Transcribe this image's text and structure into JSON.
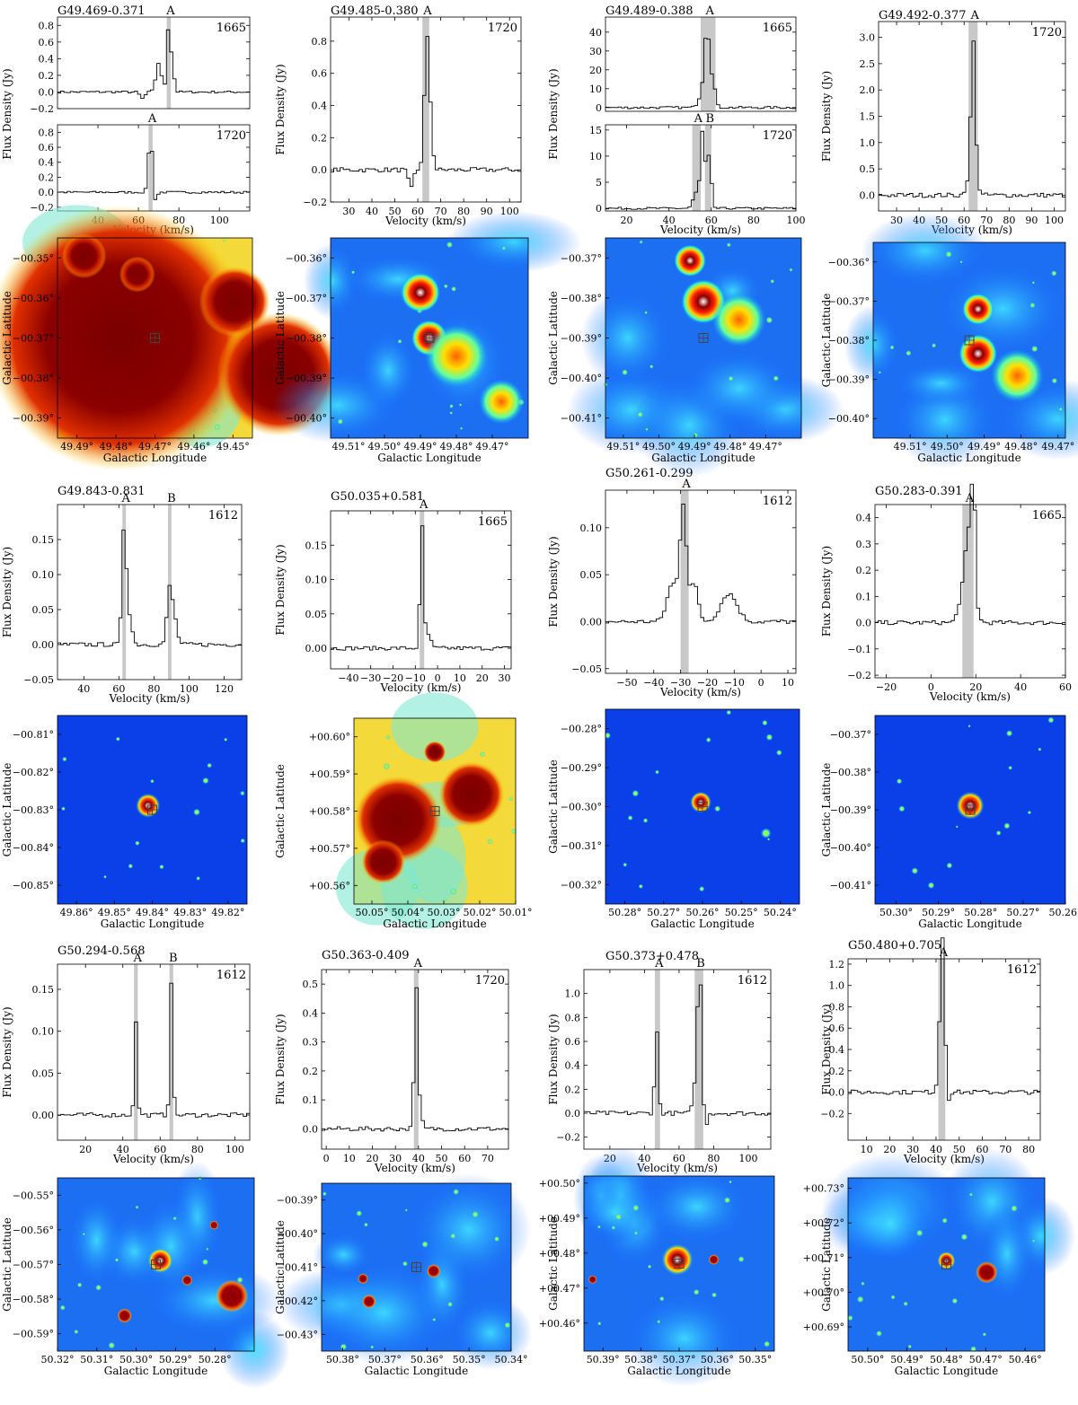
{
  "axis_text": {
    "velocity": "Velocity (km/s)",
    "flux": "Flux Density (Jy)",
    "glat": "Galactic Latitude",
    "glon": "Galactic Longitude"
  },
  "chart_data": [
    {
      "type": "line",
      "title": "G49.469-0.371",
      "panels": [
        {
          "line": "1665",
          "xlim": [
            20,
            115
          ],
          "ylim": [
            -0.2,
            0.9
          ],
          "xticks": [],
          "yticks": [
            -0.2,
            0.0,
            0.2,
            0.4,
            0.6,
            0.8
          ],
          "components": [
            {
              "label": "A",
              "v": [
                74,
                76
              ]
            }
          ],
          "features": [
            {
              "v": 62,
              "peak": -0.08,
              "w": 1.2
            },
            {
              "v": 70,
              "peak": 0.35,
              "w": 1.3
            },
            {
              "v": 75,
              "peak": 0.82,
              "w": 0.9
            },
            {
              "v": 77,
              "peak": 0.25,
              "w": 0.8
            }
          ]
        },
        {
          "line": "1720",
          "xlim": [
            20,
            115
          ],
          "ylim": [
            -0.25,
            0.9
          ],
          "xticks": [
            40,
            60,
            80,
            100
          ],
          "yticks": [
            -0.2,
            0.0,
            0.2,
            0.4,
            0.6,
            0.8
          ],
          "components": [
            {
              "label": "A",
              "v": [
                65,
                67
              ]
            }
          ],
          "features": [
            {
              "v": 66,
              "peak": 0.78,
              "w": 1.0
            },
            {
              "v": 68,
              "peak": -0.15,
              "w": 1.0
            }
          ]
        }
      ]
    },
    {
      "type": "line",
      "title": "G49.485-0.380",
      "panels": [
        {
          "line": "1720",
          "xlim": [
            22,
            105
          ],
          "ylim": [
            -0.2,
            0.95
          ],
          "xticks": [
            30,
            40,
            50,
            60,
            70,
            80,
            90,
            100
          ],
          "yticks": [
            -0.2,
            0.0,
            0.2,
            0.4,
            0.6,
            0.8
          ],
          "components": [
            {
              "label": "A",
              "v": [
                62,
                65
              ]
            }
          ],
          "features": [
            {
              "v": 57,
              "peak": -0.12,
              "w": 1.0
            },
            {
              "v": 64,
              "peak": 0.82,
              "w": 1.1
            },
            {
              "v": 66,
              "peak": 0.15,
              "w": 0.8
            }
          ]
        }
      ]
    },
    {
      "type": "line",
      "title": "G49.489-0.388",
      "panels": [
        {
          "line": "1665",
          "xlim": [
            10,
            100
          ],
          "ylim": [
            -2,
            48
          ],
          "xticks": [],
          "yticks": [
            0,
            10,
            20,
            30,
            40
          ],
          "components": [
            {
              "label": "A",
              "v": [
                55,
                62
              ]
            }
          ],
          "features": [
            {
              "v": 55,
              "peak": 5,
              "w": 1.5
            },
            {
              "v": 58,
              "peak": 42,
              "w": 1.3
            },
            {
              "v": 61,
              "peak": 12,
              "w": 1.0
            }
          ]
        },
        {
          "line": "1720",
          "xlim": [
            10,
            100
          ],
          "ylim": [
            -0.5,
            16
          ],
          "xticks": [
            20,
            40,
            60,
            80,
            100
          ],
          "yticks": [
            0,
            5,
            10,
            15
          ],
          "components": [
            {
              "label": "A",
              "v": [
                51,
                55
              ]
            },
            {
              "label": "B",
              "v": [
                57,
                60
              ]
            }
          ],
          "features": [
            {
              "v": 53,
              "peak": 3,
              "w": 1.5
            },
            {
              "v": 56,
              "peak": 14.5,
              "w": 1.0
            },
            {
              "v": 59,
              "peak": 10,
              "w": 1.0
            }
          ]
        }
      ]
    },
    {
      "type": "line",
      "title": "G49.492-0.377",
      "panels": [
        {
          "line": "1720",
          "xlim": [
            22,
            105
          ],
          "ylim": [
            -0.3,
            3.3
          ],
          "xticks": [
            30,
            40,
            50,
            60,
            70,
            80,
            90,
            100
          ],
          "yticks": [
            0.0,
            0.5,
            1.0,
            1.5,
            2.0,
            2.5,
            3.0
          ],
          "components": [
            {
              "label": "A",
              "v": [
                62,
                66
              ]
            }
          ],
          "features": [
            {
              "v": 61,
              "peak": 0.15,
              "w": 1.0
            },
            {
              "v": 64,
              "peak": 2.95,
              "w": 1.0
            },
            {
              "v": 66,
              "peak": 0.15,
              "w": 0.8
            }
          ]
        }
      ]
    },
    {
      "type": "line",
      "title": "G49.843-0.831",
      "panels": [
        {
          "line": "1612",
          "xlim": [
            25,
            130
          ],
          "ylim": [
            -0.05,
            0.2
          ],
          "xticks": [
            40,
            60,
            80,
            100,
            120
          ],
          "yticks": [
            -0.05,
            0.0,
            0.05,
            0.1,
            0.15
          ],
          "components": [
            {
              "label": "A",
              "v": [
                62,
                64
              ]
            },
            {
              "label": "B",
              "v": [
                88,
                90
              ]
            }
          ],
          "features": [
            {
              "v": 63,
              "peak": 0.17,
              "w": 1.2
            },
            {
              "v": 66,
              "peak": 0.04,
              "w": 1.5
            },
            {
              "v": 89,
              "peak": 0.08,
              "w": 1.5
            },
            {
              "v": 92,
              "peak": 0.03,
              "w": 1.5
            }
          ]
        }
      ]
    },
    {
      "type": "line",
      "title": "G50.035+0.581",
      "panels": [
        {
          "line": "1665",
          "xlim": [
            -48,
            33
          ],
          "ylim": [
            -0.03,
            0.2
          ],
          "xticks": [
            -40,
            -30,
            -20,
            -10,
            0,
            10,
            20,
            30
          ],
          "yticks": [
            0.0,
            0.05,
            0.1,
            0.15
          ],
          "components": [
            {
              "label": "A",
              "v": [
                -8,
                -6
              ]
            }
          ],
          "features": [
            {
              "v": -7,
              "peak": 0.18,
              "w": 0.8
            },
            {
              "v": -4,
              "peak": 0.02,
              "w": 1.0
            }
          ]
        }
      ]
    },
    {
      "type": "line",
      "title": "G50.261-0.299",
      "panels": [
        {
          "line": "1612",
          "xlim": [
            -58,
            13
          ],
          "ylim": [
            -0.055,
            0.14
          ],
          "xticks": [
            -50,
            -40,
            -30,
            -20,
            -10,
            0,
            10
          ],
          "yticks": [
            -0.05,
            0.0,
            0.05,
            0.1
          ],
          "components": [
            {
              "label": "A",
              "v": [
                -30,
                -27
              ]
            }
          ],
          "features": [
            {
              "v": -33,
              "peak": 0.04,
              "w": 2.0
            },
            {
              "v": -29,
              "peak": 0.12,
              "w": 1.2
            },
            {
              "v": -25,
              "peak": 0.04,
              "w": 1.5
            },
            {
              "v": -12,
              "peak": 0.03,
              "w": 3.0
            }
          ]
        }
      ]
    },
    {
      "type": "line",
      "title": "G50.283-0.391",
      "panels": [
        {
          "line": "1665",
          "xlim": [
            -25,
            60
          ],
          "ylim": [
            -0.21,
            0.45
          ],
          "xticks": [
            -20,
            0,
            20,
            40,
            60
          ],
          "yticks": [
            -0.2,
            -0.1,
            0.0,
            0.1,
            0.2,
            0.3,
            0.4
          ],
          "components": [
            {
              "label": "A",
              "v": [
                14,
                19
              ]
            }
          ],
          "features": [
            {
              "v": 13,
              "peak": 0.05,
              "w": 1.5
            },
            {
              "v": 17,
              "peak": 0.35,
              "w": 2.0
            },
            {
              "v": 19,
              "peak": 0.38,
              "w": 0.8
            }
          ]
        }
      ]
    },
    {
      "type": "line",
      "title": "G50.294-0.568",
      "panels": [
        {
          "line": "1612",
          "xlim": [
            5,
            108
          ],
          "ylim": [
            -0.03,
            0.18
          ],
          "xticks": [
            20,
            40,
            60,
            80,
            100
          ],
          "yticks": [
            0.0,
            0.05,
            0.1,
            0.15
          ],
          "components": [
            {
              "label": "A",
              "v": [
                46,
                48
              ]
            },
            {
              "label": "B",
              "v": [
                65,
                67
              ]
            }
          ],
          "features": [
            {
              "v": 47,
              "peak": 0.11,
              "w": 0.8
            },
            {
              "v": 66,
              "peak": 0.16,
              "w": 0.8
            }
          ]
        }
      ]
    },
    {
      "type": "line",
      "title": "G50.363-0.409",
      "panels": [
        {
          "line": "1720",
          "xlim": [
            -2,
            79
          ],
          "ylim": [
            -0.07,
            0.55
          ],
          "xticks": [
            0,
            10,
            20,
            30,
            40,
            50,
            60,
            70
          ],
          "yticks": [
            0.0,
            0.1,
            0.2,
            0.3,
            0.4,
            0.5
          ],
          "components": [
            {
              "label": "A",
              "v": [
                38,
                40
              ]
            }
          ],
          "features": [
            {
              "v": 39,
              "peak": 0.49,
              "w": 0.8
            },
            {
              "v": 41,
              "peak": 0.04,
              "w": 0.8
            }
          ]
        }
      ]
    },
    {
      "type": "line",
      "title": "G50.373+0.478",
      "panels": [
        {
          "line": "1612",
          "xlim": [
            5,
            113
          ],
          "ylim": [
            -0.3,
            1.2
          ],
          "xticks": [
            20,
            40,
            60,
            80,
            100
          ],
          "yticks": [
            -0.2,
            0.0,
            0.2,
            0.4,
            0.6,
            0.8,
            1.0
          ],
          "components": [
            {
              "label": "A",
              "v": [
                46,
                49
              ]
            },
            {
              "label": "B",
              "v": [
                69,
                74
              ]
            }
          ],
          "features": [
            {
              "v": 47,
              "peak": 0.7,
              "w": 1.0
            },
            {
              "v": 70,
              "peak": 0.3,
              "w": 1.5
            },
            {
              "v": 72,
              "peak": 1.1,
              "w": 1.2
            },
            {
              "v": 75,
              "peak": -0.15,
              "w": 1.0
            }
          ]
        }
      ]
    },
    {
      "type": "line",
      "title": "G50.480+0.705",
      "panels": [
        {
          "line": "1612",
          "xlim": [
            2,
            85
          ],
          "ylim": [
            -0.45,
            1.25
          ],
          "xticks": [
            10,
            20,
            30,
            40,
            50,
            60,
            70,
            80
          ],
          "yticks": [
            -0.2,
            0.0,
            0.2,
            0.4,
            0.6,
            0.8,
            1.0,
            1.2
          ],
          "components": [
            {
              "label": "A",
              "v": [
                41,
                44
              ]
            }
          ],
          "features": [
            {
              "v": 42,
              "peak": 0.5,
              "w": 1.0
            },
            {
              "v": 43,
              "peak": 1.12,
              "w": 0.9
            },
            {
              "v": 45,
              "peak": -0.1,
              "w": 0.8
            }
          ]
        }
      ]
    }
  ],
  "maps": [
    {
      "cmap": "hot",
      "lonlim": [
        49.495,
        49.445
      ],
      "latlim": [
        -0.395,
        -0.345
      ],
      "lonticks": [
        "49.49°",
        "49.48°",
        "49.47°",
        "49.46°",
        "49.45°"
      ],
      "latticks": [
        "−00.35°",
        "−00.36°",
        "−00.37°",
        "−00.38°",
        "−00.39°"
      ]
    },
    {
      "cmap": "jet",
      "lonlim": [
        49.515,
        49.46
      ],
      "latlim": [
        -0.405,
        -0.355
      ],
      "lonticks": [
        "49.51°",
        "49.50°",
        "49.49°",
        "49.48°",
        "49.47°"
      ],
      "latticks": [
        "−00.36°",
        "−00.37°",
        "−00.38°",
        "−00.39°",
        "−00.40°"
      ]
    },
    {
      "cmap": "jet",
      "lonlim": [
        49.515,
        49.46
      ],
      "latlim": [
        -0.415,
        -0.365
      ],
      "lonticks": [
        "49.51°",
        "49.50°",
        "49.49°",
        "49.48°",
        "49.47°"
      ],
      "latticks": [
        "−00.37°",
        "−00.38°",
        "−00.39°",
        "−00.40°",
        "−00.41°"
      ]
    },
    {
      "cmap": "jet",
      "lonlim": [
        49.52,
        49.468
      ],
      "latlim": [
        -0.405,
        -0.355
      ],
      "lonticks": [
        "49.51°",
        "49.50°",
        "49.49°",
        "49.48°",
        "49.47°"
      ],
      "latticks": [
        "−00.36°",
        "−00.37°",
        "−00.38°",
        "−00.39°",
        "−00.40°"
      ]
    },
    {
      "cmap": "dark",
      "lonlim": [
        49.865,
        49.815
      ],
      "latlim": [
        -0.855,
        -0.805
      ],
      "lonticks": [
        "49.86°",
        "49.85°",
        "49.84°",
        "49.83°",
        "49.82°"
      ],
      "latticks": [
        "−00.81°",
        "−00.82°",
        "−00.83°",
        "−00.84°",
        "−00.85°"
      ]
    },
    {
      "cmap": "hot",
      "lonlim": [
        50.055,
        50.01
      ],
      "latlim": [
        0.555,
        0.605
      ],
      "lonticks": [
        "50.05°",
        "50.04°",
        "50.03°",
        "50.02°",
        "50.01°"
      ],
      "latticks": [
        "+00.60°",
        "+00.59°",
        "+00.58°",
        "+00.57°",
        "+00.56°"
      ]
    },
    {
      "cmap": "dark",
      "lonlim": [
        50.285,
        50.235
      ],
      "latlim": [
        -0.325,
        -0.275
      ],
      "lonticks": [
        "50.28°",
        "50.27°",
        "50.26°",
        "50.25°",
        "50.24°"
      ],
      "latticks": [
        "−00.28°",
        "−00.29°",
        "−00.30°",
        "−00.31°",
        "−00.32°"
      ]
    },
    {
      "cmap": "dark",
      "lonlim": [
        50.305,
        50.26
      ],
      "latlim": [
        -0.415,
        -0.365
      ],
      "lonticks": [
        "50.30°",
        "50.29°",
        "50.28°",
        "50.27°",
        "50.26°"
      ],
      "latticks": [
        "−00.37°",
        "−00.38°",
        "−00.39°",
        "−00.40°",
        "−00.41°"
      ]
    },
    {
      "cmap": "jet",
      "lonlim": [
        50.32,
        50.27
      ],
      "latlim": [
        -0.595,
        -0.545
      ],
      "lonticks": [
        "50.32°",
        "50.31°",
        "50.30°",
        "50.29°",
        "50.28°"
      ],
      "latticks": [
        "−00.55°",
        "−00.56°",
        "−00.57°",
        "−00.58°",
        "−00.59°"
      ]
    },
    {
      "cmap": "jet",
      "lonlim": [
        50.385,
        50.34
      ],
      "latlim": [
        -0.435,
        -0.385
      ],
      "lonticks": [
        "50.38°",
        "50.37°",
        "50.36°",
        "50.35°",
        "50.34°"
      ],
      "latticks": [
        "−00.39°",
        "−00.40°",
        "−00.41°",
        "−00.42°",
        "−00.43°"
      ]
    },
    {
      "cmap": "jet",
      "lonlim": [
        50.395,
        50.345
      ],
      "latlim": [
        0.452,
        0.502
      ],
      "lonticks": [
        "50.39°",
        "50.38°",
        "50.37°",
        "50.36°",
        "50.35°"
      ],
      "latticks": [
        "+00.50°",
        "+00.49°",
        "+00.48°",
        "+00.47°",
        "+00.46°"
      ]
    },
    {
      "cmap": "jet",
      "lonlim": [
        50.505,
        50.455
      ],
      "latlim": [
        0.683,
        0.733
      ],
      "lonticks": [
        "50.50°",
        "50.49°",
        "50.48°",
        "50.47°",
        "50.46°"
      ],
      "latticks": [
        "+00.73°",
        "+00.72°",
        "+00.71°",
        "+00.70°",
        "+00.69°"
      ]
    }
  ]
}
